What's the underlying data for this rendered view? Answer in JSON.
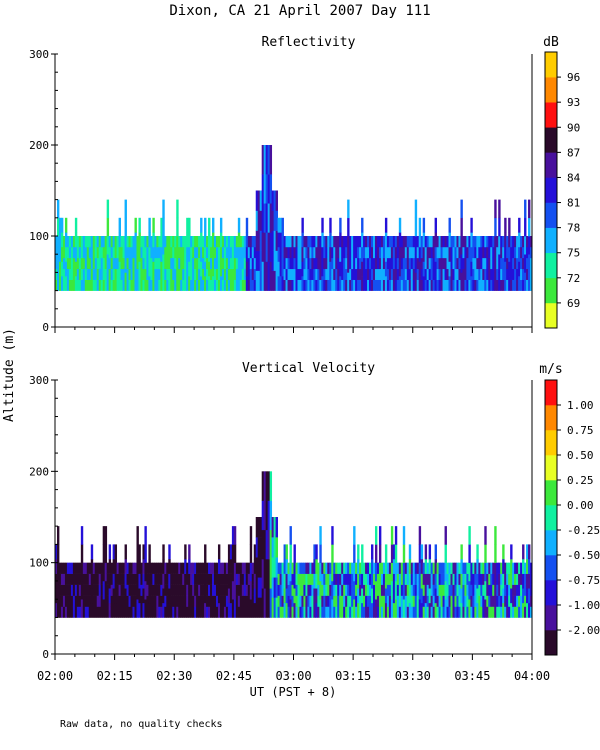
{
  "figure": {
    "title": "Dixon, CA 21 April 2007  Day 111",
    "y_axis_label": "Altitude (m)",
    "x_axis_label": "UT   (PST + 8)",
    "footnote": "Raw data, no quality checks"
  },
  "chart_data": [
    {
      "type": "heatmap",
      "title": "Reflectivity",
      "xlabel": "UT   (PST + 8)",
      "ylabel": "Altitude (m)",
      "xlim": [
        "02:00",
        "04:00"
      ],
      "ylim": [
        0,
        300
      ],
      "y_ticks": [
        "0",
        "100",
        "200",
        "300"
      ],
      "x_ticks": [
        "02:00",
        "02:15",
        "02:30",
        "02:45",
        "03:00",
        "03:15",
        "03:30",
        "03:45",
        "04:00"
      ],
      "colorbar": {
        "unit": "dB",
        "ticks": [
          "69",
          "72",
          "75",
          "78",
          "81",
          "84",
          "87",
          "90",
          "93",
          "96"
        ],
        "colors": [
          "#e8ff24",
          "#3ce83c",
          "#10f0a0",
          "#10b0ff",
          "#1450f0",
          "#2410d8",
          "#48109c",
          "#2a0a2a",
          "#ff1010",
          "#ff8800",
          "#ffcc00"
        ]
      },
      "data_extent": {
        "min_altitude": 40,
        "typical_top_altitude": 100,
        "echo_top_range": [
          100,
          140
        ],
        "max_echo_altitude": 200,
        "max_echo_time": "02:53"
      },
      "trend": "Returns from ~40 m to ~100-120 m throughout; weaker 72-78 dB (green/cyan) before ~02:45, stronger 81-87 dB (blue/purple) after ~02:50; peak echo near 200 m at ~02:53."
    },
    {
      "type": "heatmap",
      "title": "Vertical Velocity",
      "xlabel": "UT   (PST + 8)",
      "ylabel": "Altitude (m)",
      "xlim": [
        "02:00",
        "04:00"
      ],
      "ylim": [
        0,
        300
      ],
      "y_ticks": [
        "0",
        "100",
        "200",
        "300"
      ],
      "x_ticks": [
        "02:00",
        "02:15",
        "02:30",
        "02:45",
        "03:00",
        "03:15",
        "03:30",
        "03:45",
        "04:00"
      ],
      "colorbar": {
        "unit": "m/s",
        "ticks": [
          "-2.00",
          "-1.00",
          "-0.75",
          "-0.50",
          "-0.25",
          "0.00",
          "0.25",
          "0.50",
          "0.75",
          "1.00"
        ],
        "colors": [
          "#2a0a2a",
          "#48109c",
          "#2410d8",
          "#1450f0",
          "#10b0ff",
          "#10f0a0",
          "#3ce83c",
          "#e8ff24",
          "#ffcc00",
          "#ff8800",
          "#ff1010"
        ]
      },
      "data_extent": {
        "min_altitude": 40,
        "typical_top_altitude": 100,
        "echo_top_range": [
          100,
          140
        ],
        "max_echo_altitude": 200,
        "max_echo_time": "02:53"
      },
      "trend": "Mostly strong downward motion (-1 to -2 m/s, dark purple) before ~03:00; weaker downward to near-zero velocities (blue/cyan/green) after 03:00."
    }
  ]
}
